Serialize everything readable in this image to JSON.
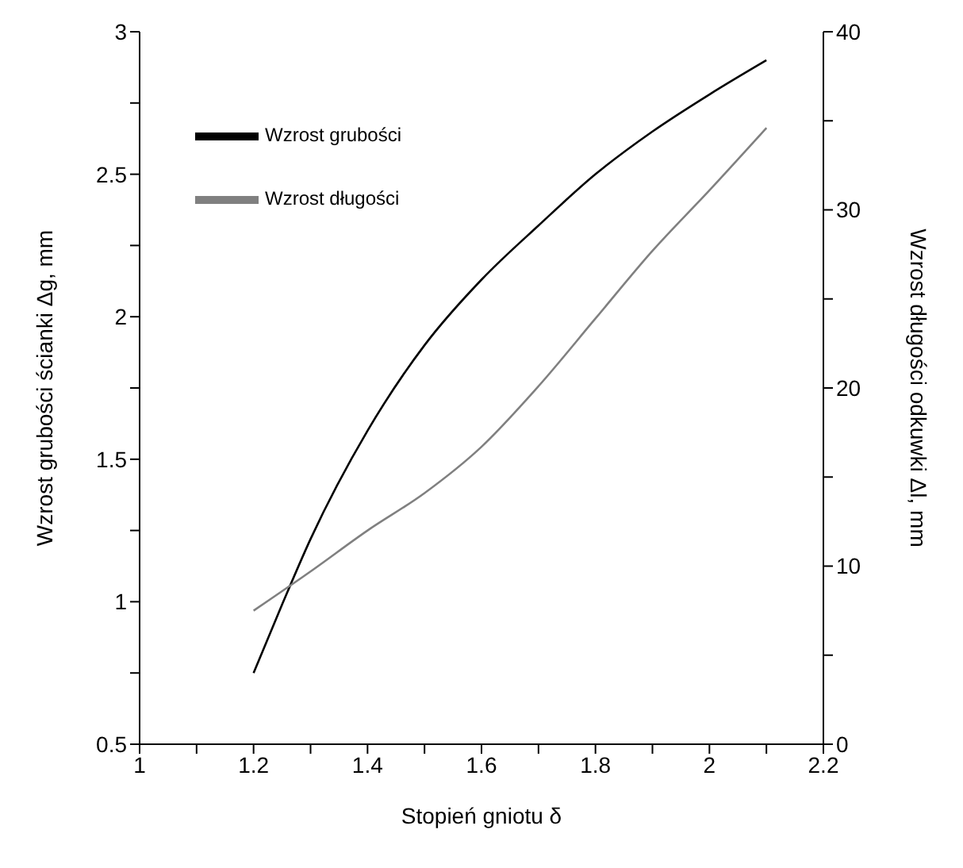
{
  "chart_data": {
    "type": "line",
    "xlabel": "Stopień gniotu δ",
    "ylabel": "Wzrost grubości ścianki Δg, mm",
    "y2label": "Wzrost długości odkuwki Δl, mm",
    "xlim": [
      1,
      2.2
    ],
    "xticks": [
      1,
      {
        "value": 1.1,
        "label": null
      },
      1.2,
      {
        "value": 1.3,
        "label": null
      },
      1.4,
      {
        "value": 1.5,
        "label": null
      },
      1.6,
      {
        "value": 1.7,
        "label": null
      },
      1.8,
      {
        "value": 1.9,
        "label": null
      },
      2,
      {
        "value": 2.1,
        "label": null
      },
      2.2
    ],
    "ylim": [
      0.5,
      3
    ],
    "yticks": [
      0.5,
      {
        "value": 0.75,
        "label": null
      },
      1,
      {
        "value": 1.25,
        "label": null
      },
      1.5,
      {
        "value": 1.75,
        "label": null
      },
      2,
      {
        "value": 2.25,
        "label": null
      },
      2.5,
      {
        "value": 2.75,
        "label": null
      },
      3
    ],
    "y2lim": [
      0,
      40
    ],
    "y2ticks": [
      0,
      {
        "value": 5,
        "label": null
      },
      10,
      {
        "value": 15,
        "label": null
      },
      20,
      {
        "value": 25,
        "label": null
      },
      30,
      {
        "value": 35,
        "label": null
      },
      40
    ],
    "x": [
      1.2,
      1.25,
      1.3,
      1.4,
      1.5,
      1.6,
      1.7,
      1.8,
      1.9,
      2,
      2.1
    ],
    "series": [
      {
        "name": "Wzrost grubości",
        "color": "#000000",
        "values": [
          0.75,
          0.99,
          1.22,
          1.6,
          1.9,
          2.13,
          2.32,
          2.5,
          2.65,
          2.78,
          2.9
        ]
      },
      {
        "name": "Wzrost długości",
        "color": "#808080",
        "axis": "y2",
        "x": [
          1.2,
          1.3,
          1.4,
          1.5,
          1.6,
          1.7,
          1.8,
          1.9,
          2,
          2.1
        ],
        "values": [
          7.5,
          9.7,
          12.0,
          14.1,
          16.7,
          20.1,
          23.9,
          27.7,
          31.1,
          34.6
        ]
      }
    ],
    "legend": "top left",
    "grid": false,
    "marker": "none",
    "line_style": "solid"
  }
}
